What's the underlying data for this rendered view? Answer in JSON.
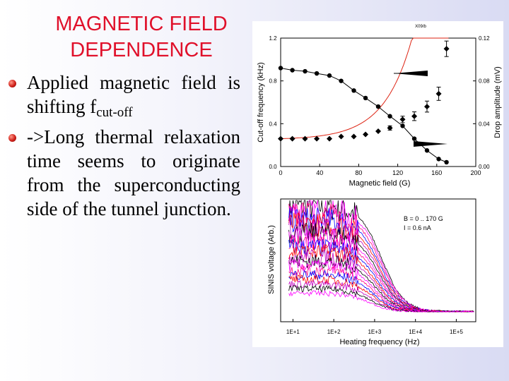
{
  "slide": {
    "title_line1": "MAGNETIC FIELD",
    "title_line2": "DEPENDENCE",
    "bullet1_main": "Applied magnetic field is shifting f",
    "bullet1_sub": "cut-off",
    "bullet2": "->Long thermal relaxation time seems to originate from the superconducting side of the tunnel junction."
  },
  "chart_data": [
    {
      "type": "scatter",
      "title": "X09/b",
      "xlabel": "Magnetic field (G)",
      "ylabel": "Cut-off frequency (kHz)",
      "y2label": "Drop amplitude (mV)",
      "xlim": [
        0,
        200
      ],
      "ylim": [
        0.0,
        1.2
      ],
      "y2lim": [
        0.0,
        0.12
      ],
      "xticks": [
        "0",
        "40",
        "80",
        "120",
        "160",
        "200"
      ],
      "yticks": [
        "0.0",
        "0.4",
        "0.8",
        "1.2"
      ],
      "y2ticks": [
        "0.00",
        "0.04",
        "0.08",
        "0.12"
      ],
      "series": [
        {
          "axis": "left",
          "marker": "circle",
          "x": [
            0,
            12,
            25,
            37,
            50,
            62,
            75,
            87,
            100,
            112,
            125,
            137,
            150,
            162,
            170
          ],
          "y": [
            0.92,
            0.9,
            0.89,
            0.87,
            0.85,
            0.8,
            0.71,
            0.64,
            0.56,
            0.47,
            0.38,
            0.26,
            0.15,
            0.07,
            0.04
          ]
        },
        {
          "axis": "right",
          "marker": "diamond",
          "x": [
            0,
            12,
            25,
            37,
            50,
            62,
            75,
            87,
            100,
            112,
            125,
            137,
            150,
            162,
            170
          ],
          "y": [
            0.026,
            0.026,
            0.026,
            0.026,
            0.026,
            0.028,
            0.028,
            0.03,
            0.033,
            0.036,
            0.044,
            0.047,
            0.056,
            0.068,
            0.11
          ]
        }
      ]
    },
    {
      "type": "line",
      "xlabel": "Heating frequency (Hz)",
      "ylabel": "SINIS voltage  (Arb.)",
      "xscale": "log",
      "xlim": [
        5,
        300000
      ],
      "xticks": [
        "1E+1",
        "1E+2",
        "1E+3",
        "1E+4",
        "1E+5"
      ],
      "annotation": [
        "B = 0 .. 170 G",
        "I = 0.6 nA"
      ],
      "curve_count": 20,
      "colors": [
        "#000000",
        "#ff00ff",
        "#ff0080",
        "#0000ff",
        "#ff0000",
        "#c000c0"
      ]
    }
  ]
}
